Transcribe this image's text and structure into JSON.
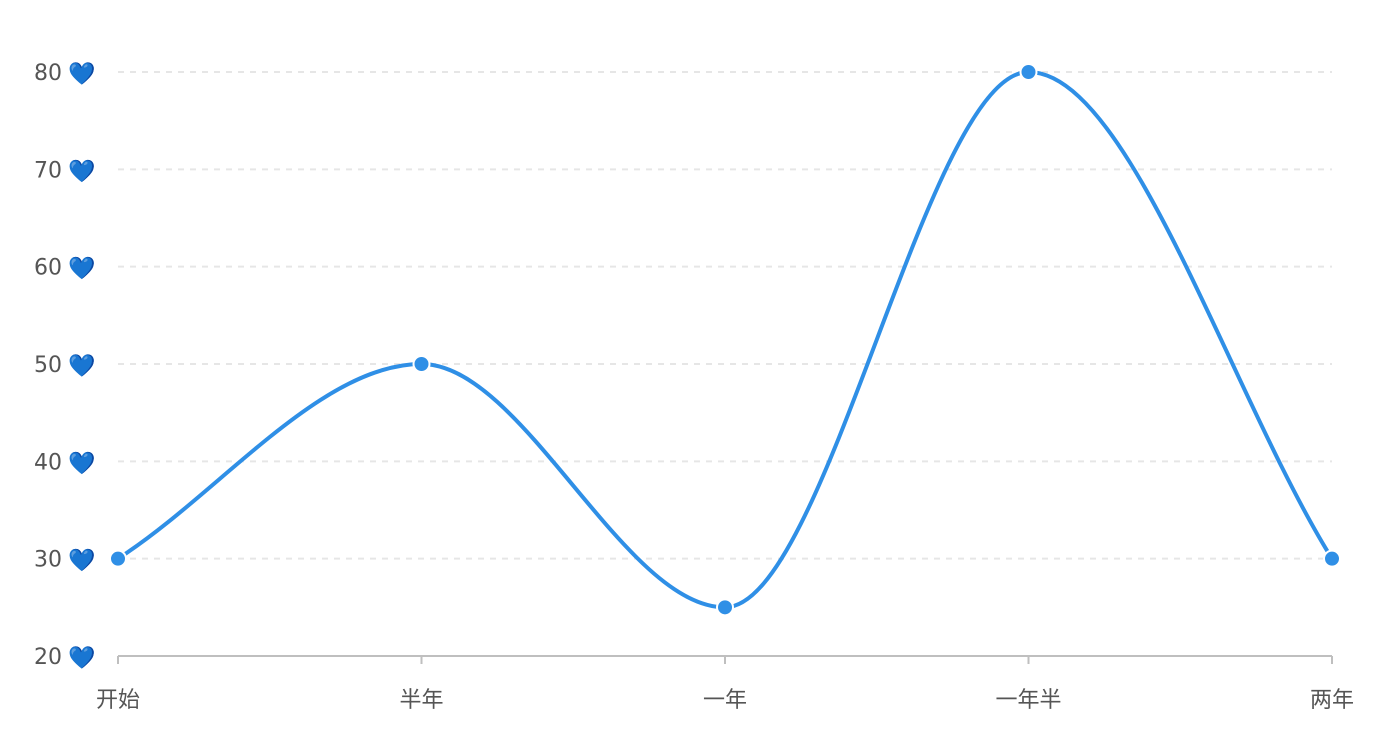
{
  "chart_data": {
    "type": "line",
    "smooth": true,
    "title": "",
    "xlabel": "",
    "ylabel": "",
    "categories": [
      "开始",
      "半年",
      "一年",
      "一年半",
      "两年"
    ],
    "series": [
      {
        "name": "",
        "values": [
          30,
          50,
          25,
          80,
          30
        ]
      }
    ],
    "ylim": [
      20,
      80
    ],
    "yticks": [
      20,
      30,
      40,
      50,
      60,
      70,
      80
    ],
    "ytick_suffix": "💙",
    "grid": true,
    "grid_style": "dashed",
    "legend": "none",
    "colors": {
      "line": "#2f8fe6",
      "point": "#2f8fe6",
      "heart": "#1e88e5",
      "text": "#555555",
      "grid": "#e6e6e6",
      "axis": "#bfbfbf"
    }
  }
}
